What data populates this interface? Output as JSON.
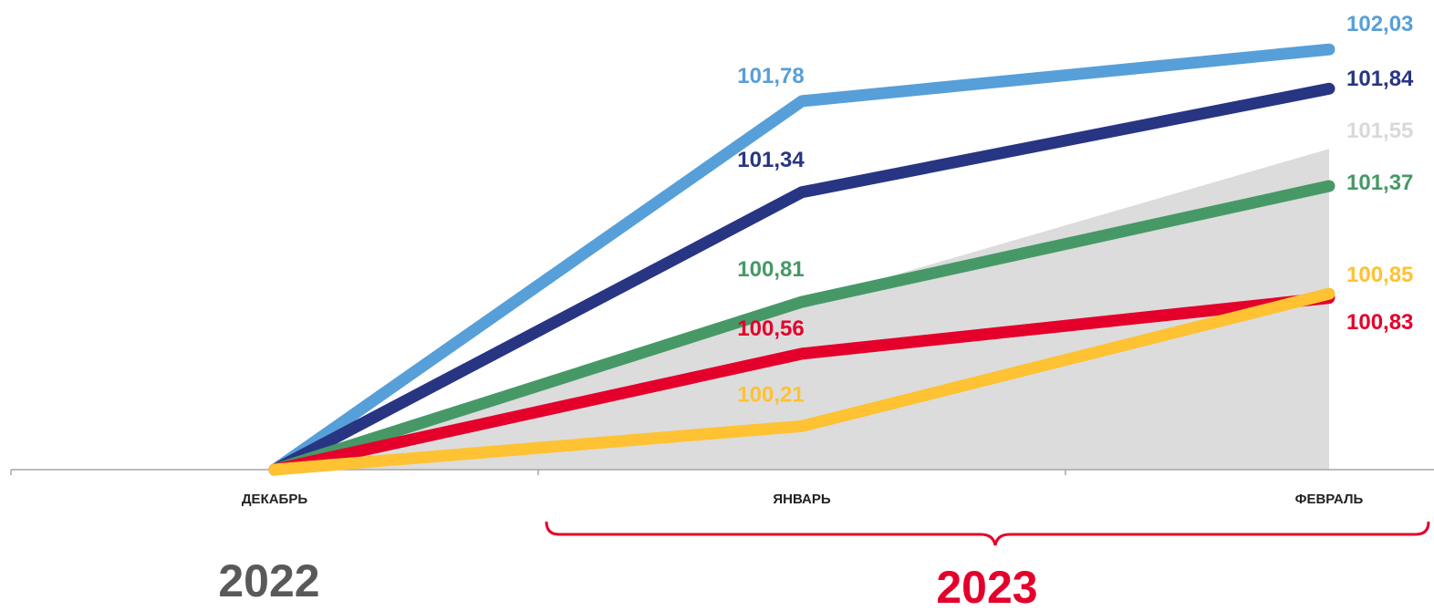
{
  "chart_data": {
    "type": "line",
    "categories": [
      "ДЕКАБРЬ",
      "ЯНВАРЬ",
      "ФЕВРАЛЬ"
    ],
    "ylim": [
      100,
      102.2
    ],
    "grid": false,
    "area": {
      "values": [
        100.0,
        100.81,
        101.55
      ],
      "color": "#dcdcdc",
      "labels": [
        "",
        "",
        "101,55"
      ],
      "label_color": "#d9d9d9"
    },
    "series": [
      {
        "values": [
          100.0,
          101.78,
          102.03
        ],
        "color": "#579fd8",
        "labels": [
          "",
          "101,78",
          "102,03"
        ]
      },
      {
        "values": [
          100.0,
          101.34,
          101.84
        ],
        "color": "#283583",
        "labels": [
          "",
          "101,34",
          "101,84"
        ]
      },
      {
        "values": [
          100.0,
          100.81,
          101.37
        ],
        "color": "#469966",
        "labels": [
          "",
          "100,81",
          "101,37"
        ]
      },
      {
        "values": [
          100.0,
          100.56,
          100.83
        ],
        "color": "#e4002b",
        "labels": [
          "",
          "100,56",
          "100,83"
        ]
      },
      {
        "values": [
          100.0,
          100.21,
          100.85
        ],
        "color": "#fec232",
        "labels": [
          "",
          "100,21",
          "100,85"
        ]
      }
    ]
  },
  "years": {
    "left": "2022",
    "right": "2023",
    "left_color": "#595959",
    "right_color": "#e4002b"
  }
}
